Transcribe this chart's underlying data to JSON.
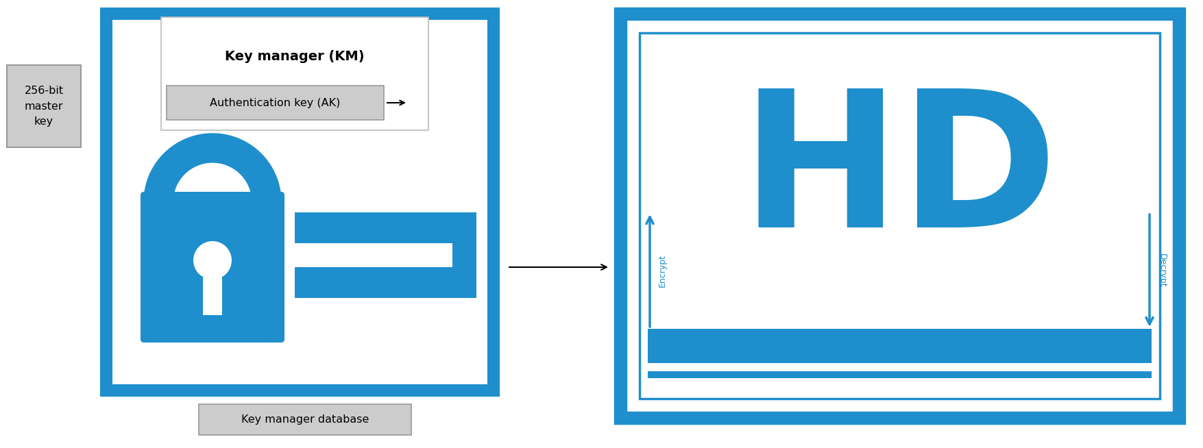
{
  "blue": "#1E8FCC",
  "bg": "white",
  "label_256": "256-bit\nmaster\nkey",
  "label_km": "Key manager (KM)",
  "label_ak": "Authentication key (AK)",
  "label_db": "Key manager database",
  "label_encrypt": "Encrypt",
  "label_decrypt": "Decrypt",
  "label_hd": "HD",
  "figw": 17.55,
  "figh": 6.54
}
